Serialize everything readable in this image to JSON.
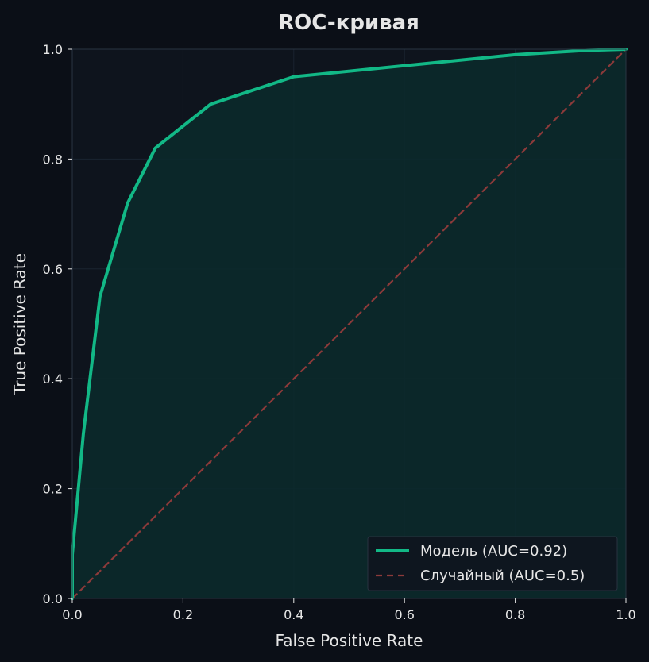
{
  "chart_data": {
    "type": "line",
    "title": "ROC-кривая",
    "xlabel": "False Positive Rate",
    "ylabel": "True Positive Rate",
    "xlim": [
      0,
      1
    ],
    "ylim": [
      0,
      1
    ],
    "xticks": [
      "0.0",
      "0.2",
      "0.4",
      "0.6",
      "0.8",
      "1.0"
    ],
    "yticks": [
      "0.0",
      "0.2",
      "0.4",
      "0.6",
      "0.8",
      "1.0"
    ],
    "grid": true,
    "legend_position": "bottom-right",
    "series": [
      {
        "name": "Модель (AUC=0.92)",
        "color": "#12b886",
        "style": "solid",
        "fill_under": true,
        "x": [
          0.0,
          0.0,
          0.02,
          0.05,
          0.1,
          0.15,
          0.25,
          0.4,
          0.6,
          0.8,
          0.93,
          1.0
        ],
        "y": [
          0.0,
          0.08,
          0.3,
          0.55,
          0.72,
          0.82,
          0.9,
          0.95,
          0.97,
          0.99,
          0.998,
          1.0
        ]
      },
      {
        "name": "Случайный (AUC=0.5)",
        "color": "#8c3a3a",
        "style": "dashed",
        "x": [
          0,
          1
        ],
        "y": [
          0,
          1
        ]
      }
    ]
  },
  "colors": {
    "background": "#0b0f17",
    "plot_background": "#0e141d",
    "fill": "#0b2a2b",
    "grid": "#1a2430",
    "spine": "#2a3442"
  }
}
